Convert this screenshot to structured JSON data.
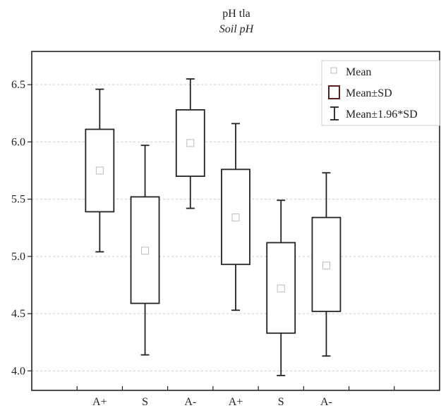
{
  "chart_data": {
    "type": "boxplot",
    "title": "pH tla",
    "subtitle": "Soil pH",
    "xlabel": "",
    "ylabel": "",
    "ylim": [
      3.83,
      6.79
    ],
    "yticks": [
      4.0,
      4.5,
      5.0,
      5.5,
      6.0,
      6.5
    ],
    "ytick_labels": [
      "4.0",
      "4.5",
      "5.0",
      "5.5",
      "6.0",
      "6.5"
    ],
    "categories": [
      "A+",
      "S",
      "A-",
      "A+",
      "S",
      "A-"
    ],
    "series": [
      {
        "category": "A+",
        "mean": 5.75,
        "sd_low": 5.39,
        "sd_high": 6.11,
        "ci_low": 5.04,
        "ci_high": 6.46
      },
      {
        "category": "S",
        "mean": 5.05,
        "sd_low": 4.59,
        "sd_high": 5.52,
        "ci_low": 4.14,
        "ci_high": 5.97
      },
      {
        "category": "A-",
        "mean": 5.99,
        "sd_low": 5.7,
        "sd_high": 6.28,
        "ci_low": 5.42,
        "ci_high": 6.55
      },
      {
        "category": "A+",
        "mean": 5.34,
        "sd_low": 4.93,
        "sd_high": 5.76,
        "ci_low": 4.53,
        "ci_high": 6.16
      },
      {
        "category": "S",
        "mean": 4.72,
        "sd_low": 4.33,
        "sd_high": 5.12,
        "ci_low": 3.96,
        "ci_high": 5.49
      },
      {
        "category": "A-",
        "mean": 4.92,
        "sd_low": 4.52,
        "sd_high": 5.34,
        "ci_low": 4.13,
        "ci_high": 5.73
      }
    ],
    "legend": {
      "position": "top-right",
      "entries": [
        "Mean",
        "Mean±SD",
        "Mean±1.96*SD"
      ]
    },
    "grid": "horizontal-dashed",
    "colors": {
      "line": "#222222",
      "mean_marker": "#bbbbbb",
      "sd_legend": "#5a1f1f",
      "grid": "#cccccc"
    }
  }
}
